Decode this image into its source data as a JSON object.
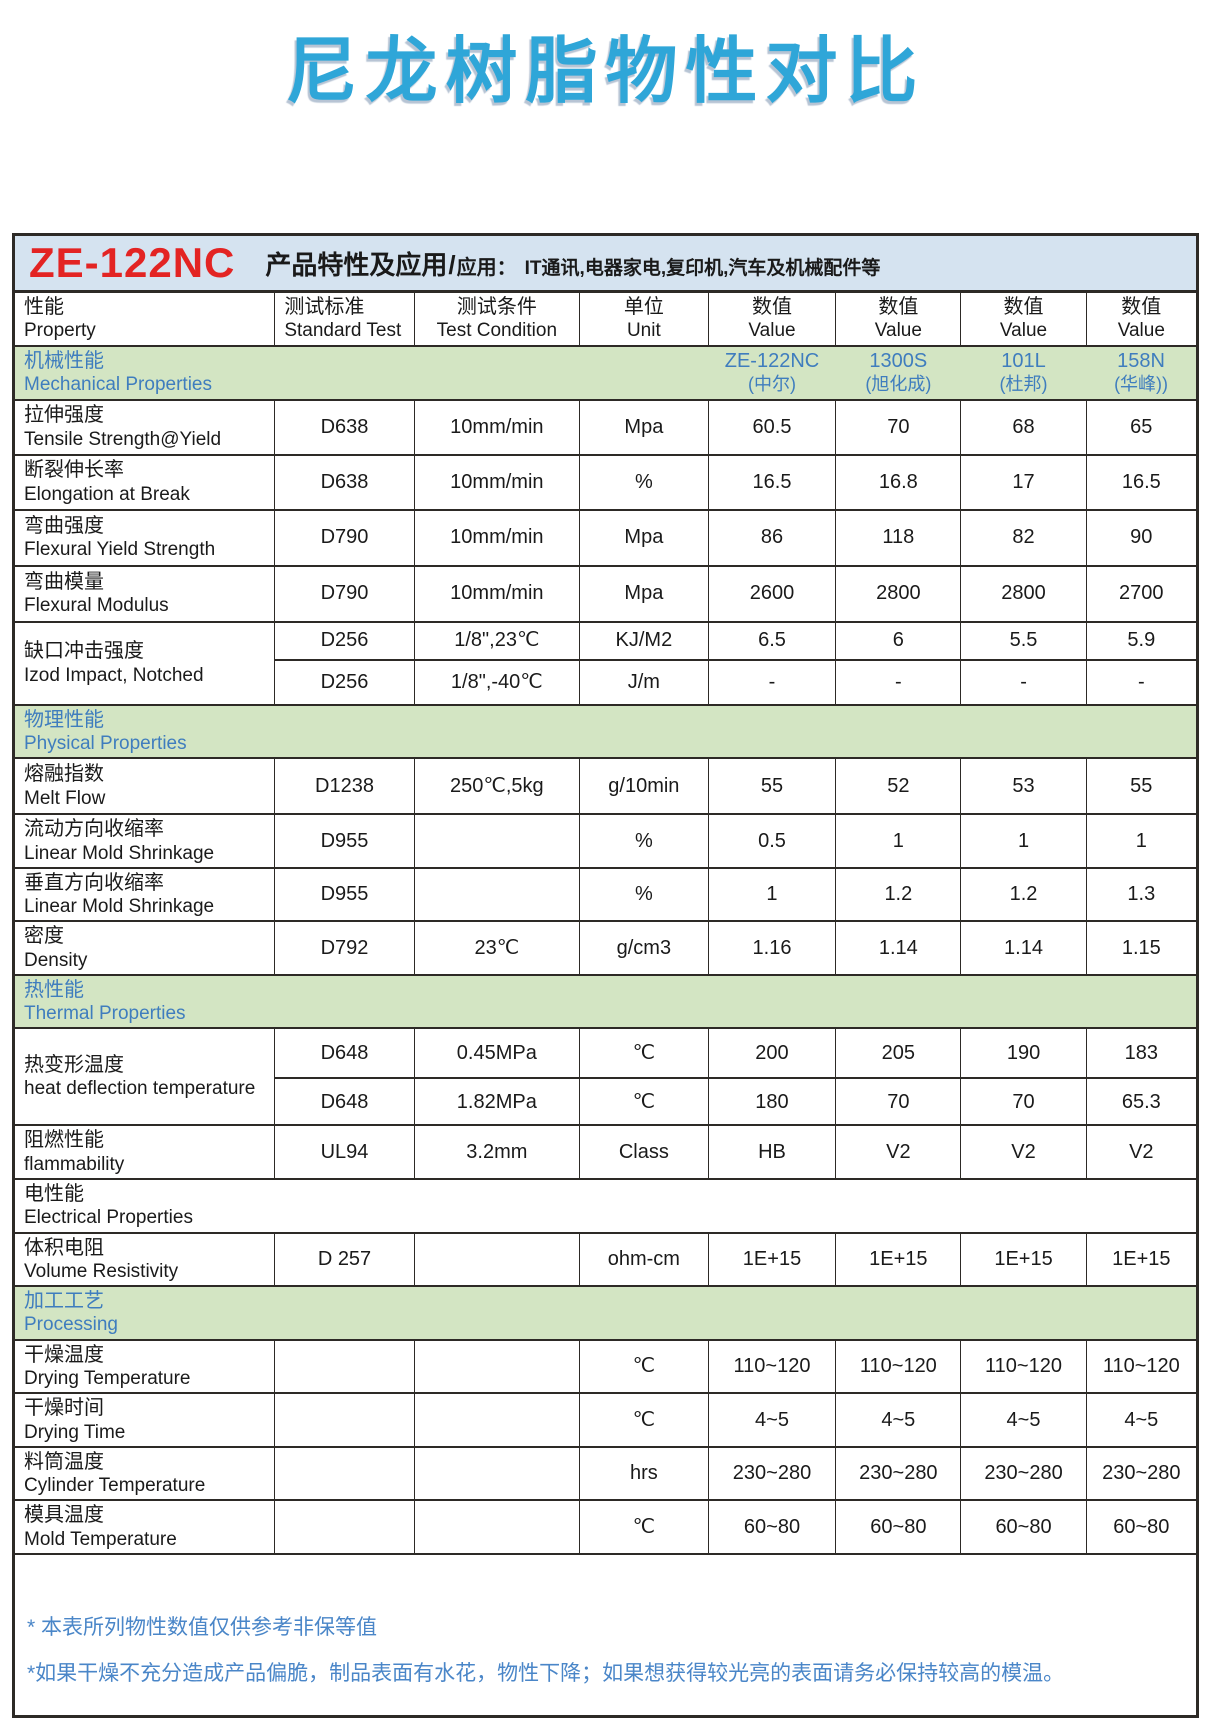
{
  "page": {
    "title": "尼龙树脂物性对比"
  },
  "colors": {
    "title_blue": "#2fa6d8",
    "model_red": "#e32423",
    "band_blue": "#d5e3f0",
    "section_green": "#d3e5c3",
    "section_blue": "#3f7dbe",
    "note_blue": "#4a86c8",
    "border": "#2d2a26"
  },
  "product_header": {
    "model": "ZE-122NC",
    "feature_label": "产品特性及应用",
    "separator": "/",
    "app_label": "应用：",
    "applications": "IT通讯,电器家电,复印机,汽车及机械配件等"
  },
  "table": {
    "columns": [
      {
        "zh": "性能",
        "en": "Property"
      },
      {
        "zh": "测试标准",
        "en": "Standard Test"
      },
      {
        "zh": "测试条件",
        "en": "Test Condition"
      },
      {
        "zh": "单位",
        "en": "Unit"
      },
      {
        "zh": "数值",
        "en": "Value"
      },
      {
        "zh": "数值",
        "en": "Value"
      },
      {
        "zh": "数值",
        "en": "Value"
      },
      {
        "zh": "数值",
        "en": "Value"
      }
    ],
    "grades": [
      {
        "name": "ZE-122NC",
        "maker": "(中尔)"
      },
      {
        "name": "1300S",
        "maker": "(旭化成)"
      },
      {
        "name": "101L",
        "maker": "(杜邦)"
      },
      {
        "name": "158N",
        "maker": "(华峰))"
      }
    ],
    "rows": [
      {
        "kind": "section",
        "zh": "机械性能",
        "en": "Mechanical Properties",
        "grades": true
      },
      {
        "kind": "row",
        "zh": "拉伸强度",
        "en": "Tensile Strength@Yield",
        "std": "D638",
        "cond": "10mm/min",
        "unit": "Mpa",
        "values": [
          "60.5",
          "70",
          "68",
          "65"
        ]
      },
      {
        "kind": "row",
        "zh": "断裂伸长率",
        "en": "Elongation at Break",
        "std": "D638",
        "cond": "10mm/min",
        "unit": "%",
        "values": [
          "16.5",
          "16.8",
          "17",
          "16.5"
        ]
      },
      {
        "kind": "row",
        "zh": "弯曲强度",
        "en": "Flexural Yield Strength",
        "std": "D790",
        "cond": "10mm/min",
        "unit": "Mpa",
        "values": [
          "86",
          "118",
          "82",
          "90"
        ]
      },
      {
        "kind": "row",
        "zh": "弯曲模量",
        "en": "Flexural Modulus",
        "std": "D790",
        "cond": "10mm/min",
        "unit": "Mpa",
        "values": [
          "2600",
          "2800",
          "2800",
          "2700"
        ]
      },
      {
        "kind": "merged",
        "zh": "缺口冲击强度",
        "en": "Izod Impact, Notched",
        "subs": [
          {
            "std": "D256",
            "cond": "1/8\",23℃",
            "unit": "KJ/M2",
            "values": [
              "6.5",
              "6",
              "5.5",
              "5.9"
            ]
          },
          {
            "std": "D256",
            "cond": "1/8\",-40℃",
            "unit": "J/m",
            "values": [
              "-",
              "-",
              "-",
              "-"
            ]
          }
        ]
      },
      {
        "kind": "section",
        "zh": "物理性能",
        "en": "Physical Properties"
      },
      {
        "kind": "row",
        "zh": "熔融指数",
        "en": "Melt Flow",
        "std": "D1238",
        "cond": "250℃,5kg",
        "unit": "g/10min",
        "values": [
          "55",
          "52",
          "53",
          "55"
        ]
      },
      {
        "kind": "row",
        "zh": "流动方向收缩率",
        "en": "Linear Mold Shrinkage",
        "std": "D955",
        "cond": "",
        "unit": "%",
        "values": [
          "0.5",
          "1",
          "1",
          "1"
        ]
      },
      {
        "kind": "row",
        "zh": "垂直方向收缩率",
        "en": "Linear Mold Shrinkage",
        "std": "D955",
        "cond": "",
        "unit": "%",
        "values": [
          "1",
          "1.2",
          "1.2",
          "1.3"
        ]
      },
      {
        "kind": "row",
        "zh": "密度",
        "en": "Density",
        "std": "D792",
        "cond": "23℃",
        "unit": "g/cm3",
        "values": [
          "1.16",
          "1.14",
          "1.14",
          "1.15"
        ]
      },
      {
        "kind": "section",
        "zh": "热性能",
        "en": "Thermal Properties"
      },
      {
        "kind": "merged",
        "zh": "热变形温度",
        "en": "heat deflection temperature",
        "subs": [
          {
            "std": "D648",
            "cond": "0.45MPa",
            "unit": "℃",
            "values": [
              "200",
              "205",
              "190",
              "183"
            ]
          },
          {
            "std": "D648",
            "cond": "1.82MPa",
            "unit": "℃",
            "values": [
              "180",
              "70",
              "70",
              "65.3"
            ]
          }
        ]
      },
      {
        "kind": "row",
        "zh": "阻燃性能",
        "en": "flammability",
        "std": "UL94",
        "cond": "3.2mm",
        "unit": "Class",
        "values": [
          "HB",
          "V2",
          "V2",
          "V2"
        ]
      },
      {
        "kind": "section",
        "zh": "电性能",
        "en": "Electrical Properties",
        "plain": true
      },
      {
        "kind": "row",
        "zh": "体积电阻",
        "en": "Volume Resistivity",
        "std": "D 257",
        "cond": "",
        "unit": "ohm-cm",
        "values": [
          "1E+15",
          "1E+15",
          "1E+15",
          "1E+15"
        ]
      },
      {
        "kind": "section",
        "zh": "加工工艺",
        "en": "Processing"
      },
      {
        "kind": "row",
        "zh": "干燥温度",
        "en": "Drying Temperature",
        "std": "",
        "cond": "",
        "unit": "℃",
        "values": [
          "110~120",
          "110~120",
          "110~120",
          "110~120"
        ]
      },
      {
        "kind": "row",
        "zh": "干燥时间",
        "en": "Drying Time",
        "std": "",
        "cond": "",
        "unit": "℃",
        "values": [
          "4~5",
          "4~5",
          "4~5",
          "4~5"
        ]
      },
      {
        "kind": "row",
        "zh": "料筒温度",
        "en": "Cylinder Temperature",
        "std": "",
        "cond": "",
        "unit": "hrs",
        "values": [
          "230~280",
          "230~280",
          "230~280",
          "230~280"
        ]
      },
      {
        "kind": "row",
        "zh": "模具温度",
        "en": "Mold Temperature",
        "std": "",
        "cond": "",
        "unit": "℃",
        "values": [
          "60~80",
          "60~80",
          "60~80",
          "60~80"
        ]
      }
    ]
  },
  "notes": [
    "* 本表所列物性数值仅供参考非保等值",
    "*如果干燥不充分造成产品偏脆，制品表面有水花，物性下降；如果想获得较光亮的表面请务必保持较高的模温。"
  ]
}
